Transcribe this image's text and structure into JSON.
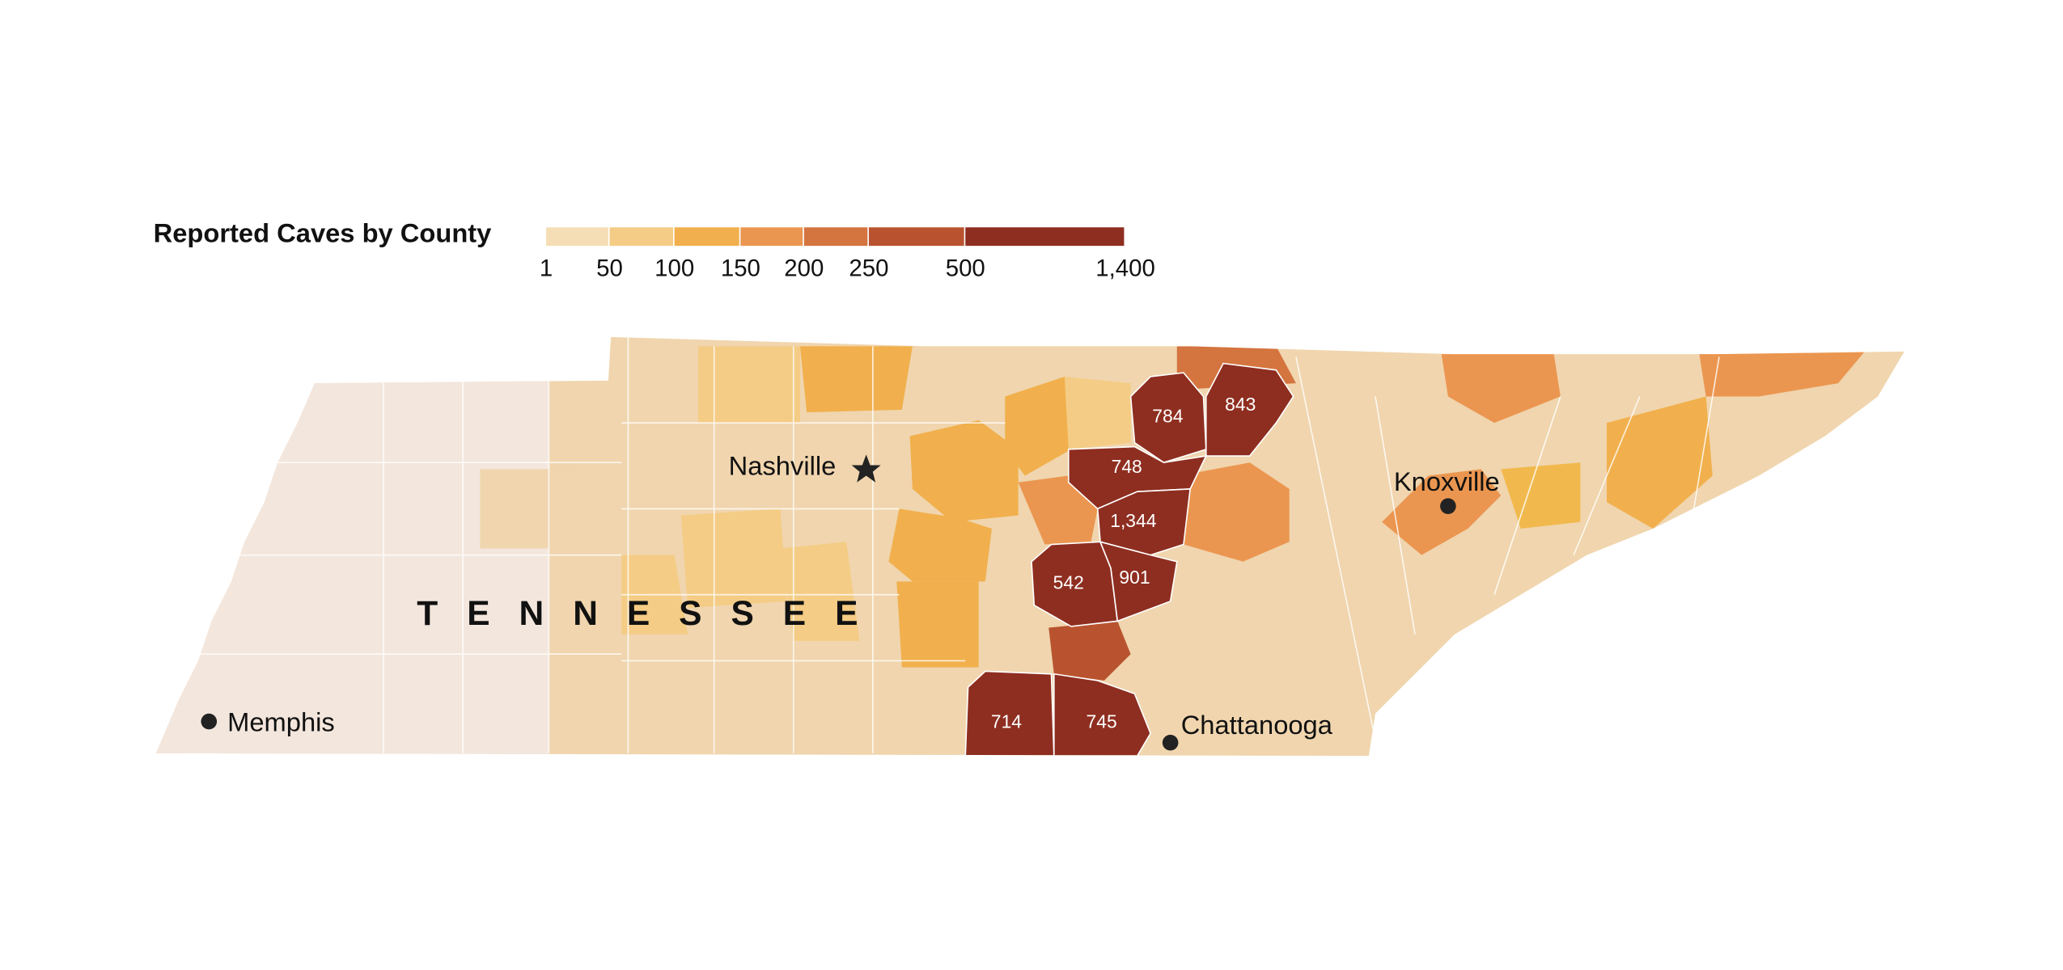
{
  "title": "Reported Caves by County",
  "legend": {
    "ticks": [
      1,
      50,
      100,
      150,
      200,
      250,
      500,
      {
        "value": 1400,
        "label": "1,400"
      }
    ],
    "colors": [
      "#f5ddb5",
      "#f4cc85",
      "#f1b04d",
      "#eb9650",
      "#d4743f",
      "#b9532f",
      "#8e2e20"
    ]
  },
  "state_label": "TENNESSEE",
  "cities": [
    "Nashville",
    "Knoxville",
    "Memphis",
    "Chattanooga"
  ],
  "counties": [
    784,
    843,
    748,
    {
      "value": 1344,
      "label": "1,344"
    },
    542,
    901,
    714,
    745
  ]
}
